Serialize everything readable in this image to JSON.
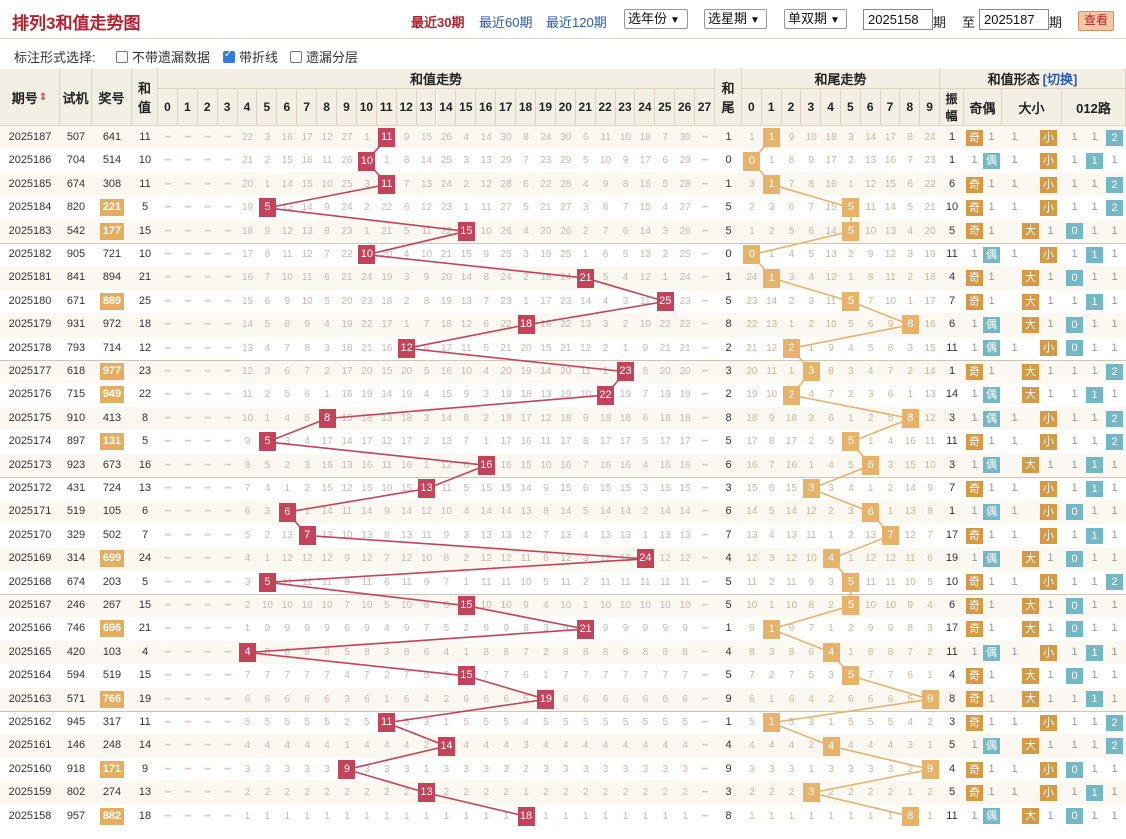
{
  "header": {
    "title": "排列3和值走势图",
    "periods": [
      "最近30期",
      "最近60期",
      "最近120期"
    ],
    "active_period": 0,
    "selects": [
      "选年份",
      "选星期",
      "单双期"
    ],
    "from": "2025158",
    "to": "2025187",
    "qi": "期",
    "zhi": "至",
    "view_btn": "查看"
  },
  "options": {
    "label": "标注形式选择:",
    "items": [
      {
        "label": "不带遗漏数据",
        "checked": false
      },
      {
        "label": "带折线",
        "checked": true
      },
      {
        "label": "遗漏分层",
        "checked": false
      }
    ]
  },
  "columns": {
    "issue": "期号",
    "trial": "试机",
    "draw": "奖号",
    "sum": [
      "和",
      "值"
    ],
    "sum_trend": "和值走势",
    "tail": [
      "和",
      "尾"
    ],
    "tail_trend": "和尾走势",
    "form": "和值形态",
    "switch": "[切换]",
    "amp": [
      "振",
      "幅"
    ],
    "odd_even": "奇偶",
    "big_small": "大小",
    "route": "012路",
    "sum_nums": [
      "0",
      "1",
      "2",
      "3",
      "4",
      "5",
      "6",
      "7",
      "8",
      "9",
      "10",
      "11",
      "12",
      "13",
      "14",
      "15",
      "16",
      "17",
      "18",
      "19",
      "20",
      "21",
      "22",
      "23",
      "24",
      "25",
      "26",
      "27"
    ],
    "tail_nums": [
      "0",
      "1",
      "2",
      "3",
      "4",
      "5",
      "6",
      "7",
      "8",
      "9"
    ],
    "labels": {
      "odd": "奇",
      "even": "偶",
      "big": "大",
      "small": "小"
    }
  },
  "rows": [
    {
      "issue": "2025187",
      "trial": "507",
      "draw": "641",
      "sum": 11,
      "tail": 1,
      "amp": 1,
      "hl": false
    },
    {
      "issue": "2025186",
      "trial": "704",
      "draw": "514",
      "sum": 10,
      "tail": 0,
      "amp": 1,
      "hl": false
    },
    {
      "issue": "2025185",
      "trial": "674",
      "draw": "308",
      "sum": 11,
      "tail": 1,
      "amp": 6,
      "hl": false
    },
    {
      "issue": "2025184",
      "trial": "820",
      "draw": "221",
      "sum": 5,
      "tail": 5,
      "amp": 10,
      "hl": true
    },
    {
      "issue": "2025183",
      "trial": "542",
      "draw": "177",
      "sum": 15,
      "tail": 5,
      "amp": 5,
      "hl": true
    },
    {
      "issue": "2025182",
      "trial": "905",
      "draw": "721",
      "sum": 10,
      "tail": 0,
      "amp": 11,
      "hl": false
    },
    {
      "issue": "2025181",
      "trial": "841",
      "draw": "894",
      "sum": 21,
      "tail": 1,
      "amp": 4,
      "hl": false
    },
    {
      "issue": "2025180",
      "trial": "671",
      "draw": "889",
      "sum": 25,
      "tail": 5,
      "amp": 7,
      "hl": true
    },
    {
      "issue": "2025179",
      "trial": "931",
      "draw": "972",
      "sum": 18,
      "tail": 8,
      "amp": 6,
      "hl": false
    },
    {
      "issue": "2025178",
      "trial": "793",
      "draw": "714",
      "sum": 12,
      "tail": 2,
      "amp": 11,
      "hl": false
    },
    {
      "issue": "2025177",
      "trial": "618",
      "draw": "977",
      "sum": 23,
      "tail": 3,
      "amp": 1,
      "hl": true
    },
    {
      "issue": "2025176",
      "trial": "715",
      "draw": "949",
      "sum": 22,
      "tail": 2,
      "amp": 14,
      "hl": true
    },
    {
      "issue": "2025175",
      "trial": "910",
      "draw": "413",
      "sum": 8,
      "tail": 8,
      "amp": 3,
      "hl": false
    },
    {
      "issue": "2025174",
      "trial": "897",
      "draw": "131",
      "sum": 5,
      "tail": 5,
      "amp": 11,
      "hl": true
    },
    {
      "issue": "2025173",
      "trial": "923",
      "draw": "673",
      "sum": 16,
      "tail": 6,
      "amp": 3,
      "hl": false
    },
    {
      "issue": "2025172",
      "trial": "431",
      "draw": "724",
      "sum": 13,
      "tail": 3,
      "amp": 7,
      "hl": false
    },
    {
      "issue": "2025171",
      "trial": "519",
      "draw": "105",
      "sum": 6,
      "tail": 6,
      "amp": 1,
      "hl": false
    },
    {
      "issue": "2025170",
      "trial": "329",
      "draw": "502",
      "sum": 7,
      "tail": 7,
      "amp": 17,
      "hl": false
    },
    {
      "issue": "2025169",
      "trial": "314",
      "draw": "699",
      "sum": 24,
      "tail": 4,
      "amp": 19,
      "hl": true
    },
    {
      "issue": "2025168",
      "trial": "674",
      "draw": "203",
      "sum": 5,
      "tail": 5,
      "amp": 10,
      "hl": false
    },
    {
      "issue": "2025167",
      "trial": "246",
      "draw": "267",
      "sum": 15,
      "tail": 5,
      "amp": 6,
      "hl": false
    },
    {
      "issue": "2025166",
      "trial": "746",
      "draw": "696",
      "sum": 21,
      "tail": 1,
      "amp": 17,
      "hl": true
    },
    {
      "issue": "2025165",
      "trial": "420",
      "draw": "103",
      "sum": 4,
      "tail": 4,
      "amp": 11,
      "hl": false
    },
    {
      "issue": "2025164",
      "trial": "594",
      "draw": "519",
      "sum": 15,
      "tail": 5,
      "amp": 4,
      "hl": false
    },
    {
      "issue": "2025163",
      "trial": "571",
      "draw": "766",
      "sum": 19,
      "tail": 9,
      "amp": 8,
      "hl": true
    },
    {
      "issue": "2025162",
      "trial": "945",
      "draw": "317",
      "sum": 11,
      "tail": 1,
      "amp": 3,
      "hl": false
    },
    {
      "issue": "2025161",
      "trial": "146",
      "draw": "248",
      "sum": 14,
      "tail": 4,
      "amp": 5,
      "hl": false
    },
    {
      "issue": "2025160",
      "trial": "918",
      "draw": "171",
      "sum": 9,
      "tail": 9,
      "amp": 4,
      "hl": true
    },
    {
      "issue": "2025159",
      "trial": "802",
      "draw": "274",
      "sum": 13,
      "tail": 3,
      "amp": 5,
      "hl": false
    },
    {
      "issue": "2025158",
      "trial": "957",
      "draw": "882",
      "sum": 18,
      "tail": 8,
      "amp": 11,
      "hl": true
    }
  ],
  "colors": {
    "hit": "#c3445a",
    "tail_hit": "#e7b36a",
    "line_sum": "#c3445a",
    "line_tail": "#e7b36a"
  }
}
